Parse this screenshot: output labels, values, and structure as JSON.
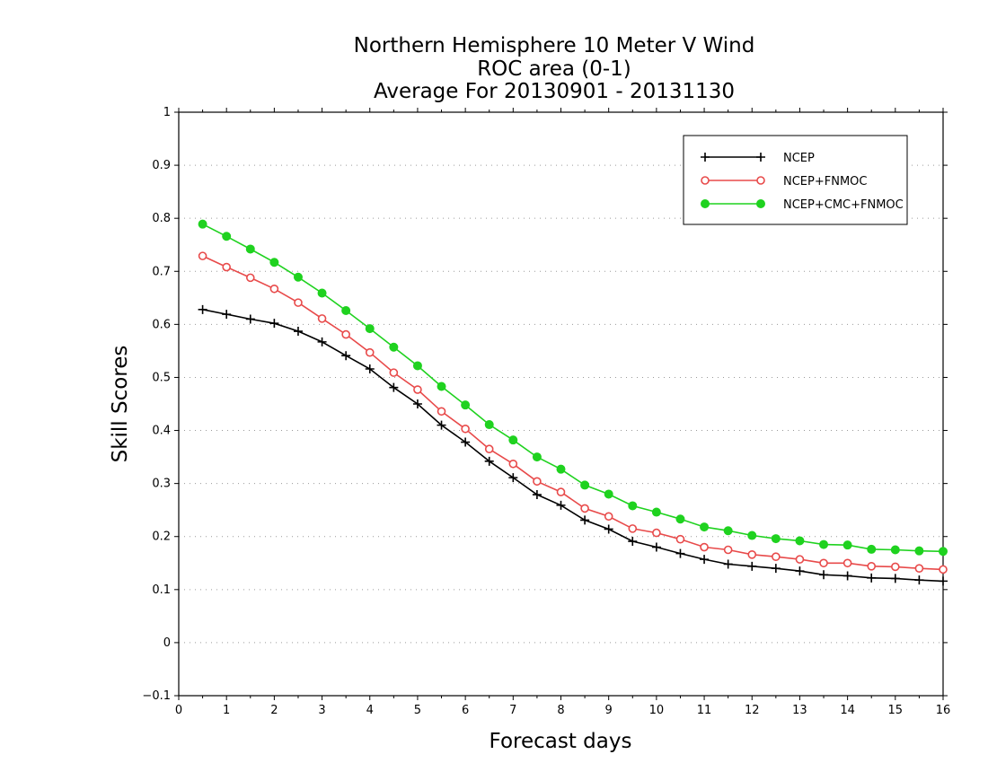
{
  "chart_data": {
    "type": "line",
    "title": [
      "Northern Hemisphere 10 Meter V Wind",
      "ROC area (0-1)",
      "Average For 20130901 - 20131130"
    ],
    "xlabel": "Forecast days",
    "ylabel": "Skill Scores",
    "xlim": [
      0,
      16
    ],
    "ylim": [
      -0.1,
      1
    ],
    "x_ticks": [
      "0",
      "1",
      "2",
      "3",
      "4",
      "5",
      "6",
      "7",
      "8",
      "9",
      "10",
      "11",
      "12",
      "13",
      "14",
      "15",
      "16"
    ],
    "y_ticks": [
      "−0.1",
      "0",
      "0.1",
      "0.2",
      "0.3",
      "0.4",
      "0.5",
      "0.6",
      "0.7",
      "0.8",
      "0.9",
      "1"
    ],
    "y_tick_values": [
      -0.1,
      0,
      0.1,
      0.2,
      0.3,
      0.4,
      0.5,
      0.6,
      0.7,
      0.8,
      0.9,
      1.0
    ],
    "grid": "horizontal-dotted",
    "legend_position": "top-right",
    "x": [
      0.5,
      1.0,
      1.5,
      2.0,
      2.5,
      3.0,
      3.5,
      4.0,
      4.5,
      5.0,
      5.5,
      6.0,
      6.5,
      7.0,
      7.5,
      8.0,
      8.5,
      9.0,
      9.5,
      10.0,
      10.5,
      11.0,
      11.5,
      12.0,
      12.5,
      13.0,
      13.5,
      14.0,
      14.5,
      15.0,
      15.5,
      16.0
    ],
    "series": [
      {
        "name": "NCEP",
        "color": "#000000",
        "marker": "plus",
        "values": [
          0.628,
          0.619,
          0.61,
          0.602,
          0.587,
          0.567,
          0.541,
          0.516,
          0.481,
          0.45,
          0.41,
          0.378,
          0.342,
          0.311,
          0.279,
          0.259,
          0.231,
          0.214,
          0.191,
          0.18,
          0.168,
          0.157,
          0.148,
          0.144,
          0.14,
          0.135,
          0.128,
          0.126,
          0.122,
          0.121,
          0.118,
          0.116
        ]
      },
      {
        "name": "NCEP+FNMOC",
        "color": "#e84a4a",
        "marker": "open-circle",
        "values": [
          0.729,
          0.708,
          0.688,
          0.667,
          0.641,
          0.611,
          0.581,
          0.547,
          0.509,
          0.477,
          0.436,
          0.403,
          0.365,
          0.337,
          0.304,
          0.284,
          0.253,
          0.238,
          0.215,
          0.207,
          0.195,
          0.18,
          0.175,
          0.166,
          0.162,
          0.157,
          0.15,
          0.15,
          0.144,
          0.143,
          0.14,
          0.138
        ]
      },
      {
        "name": "NCEP+CMC+FNMOC",
        "color": "#1fd21f",
        "marker": "filled-circle",
        "values": [
          0.789,
          0.766,
          0.742,
          0.717,
          0.689,
          0.659,
          0.626,
          0.592,
          0.557,
          0.522,
          0.483,
          0.448,
          0.411,
          0.382,
          0.35,
          0.327,
          0.297,
          0.28,
          0.258,
          0.246,
          0.233,
          0.218,
          0.211,
          0.202,
          0.196,
          0.192,
          0.185,
          0.184,
          0.176,
          0.175,
          0.173,
          0.172
        ]
      }
    ]
  }
}
